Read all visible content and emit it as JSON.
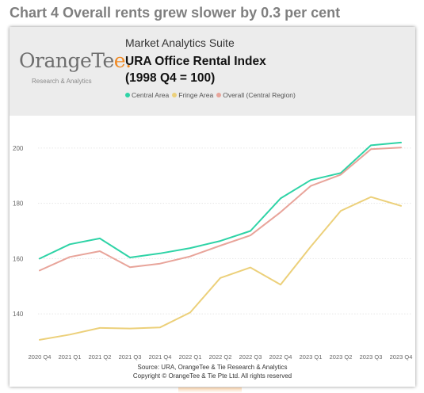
{
  "page_title": "Chart 4 Overall rents grew slower by 0.3 per cent",
  "logo": {
    "text_main": "OrangeTe",
    "text_accent": "e.",
    "tagline": "Research & Analytics"
  },
  "suite_name": "Market Analytics Suite",
  "chart_title_line1": "URA Office Rental Index",
  "chart_title_line2": "(1998 Q4 = 100)",
  "source_line1": "Source: URA, OrangeTee & Tie Research & Analytics",
  "source_line2": "Copyright © OrangeTee & Tie Pte Ltd. All rights reserved",
  "colors": {
    "central": "#2ed3a6",
    "fringe": "#ecd07a",
    "overall": "#e8a49a",
    "grid": "#e6e6e6"
  },
  "chart_data": {
    "type": "line",
    "x": [
      "2020 Q4",
      "2021 Q1",
      "2021 Q2",
      "2021 Q3",
      "2021 Q4",
      "2022 Q1",
      "2022 Q2",
      "2022 Q3",
      "2022 Q4",
      "2023 Q1",
      "2023 Q2",
      "2023 Q3",
      "2023 Q4"
    ],
    "series": [
      {
        "name": "Central Area",
        "values": [
          160,
          165.2,
          167.3,
          160.4,
          161.9,
          163.8,
          166.4,
          170,
          181.8,
          188.4,
          191,
          201,
          202
        ]
      },
      {
        "name": "Fringe Area",
        "values": [
          130.6,
          132.5,
          134.9,
          134.7,
          135.1,
          140.5,
          153,
          156.8,
          150.6,
          164.3,
          177.3,
          182.3,
          179.1
        ]
      },
      {
        "name": "Overall (Central Region)",
        "values": [
          155.7,
          160.6,
          162.7,
          156.9,
          158.2,
          160.8,
          164.7,
          168.4,
          176.8,
          186.3,
          190.4,
          199.6,
          200.2
        ]
      }
    ],
    "y_ticks": [
      140,
      160,
      180,
      200
    ],
    "ylim": [
      128,
      210
    ],
    "title": "URA Office Rental Index",
    "subtitle": "(1998 Q4 = 100)",
    "legend_position": "top",
    "grid": true
  }
}
